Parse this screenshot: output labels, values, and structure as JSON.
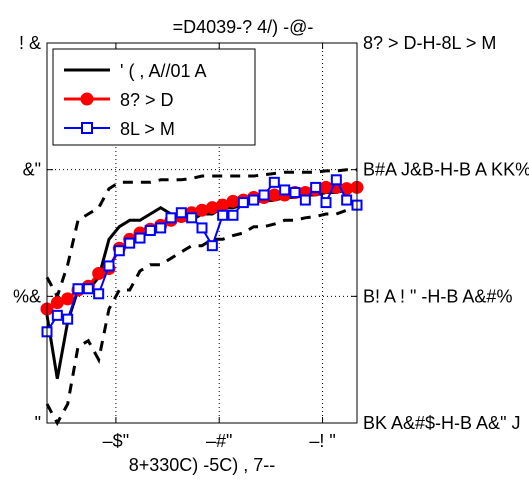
{
  "chart_data": {
    "type": "line",
    "title": "=D4039-? 4/) -@-",
    "xlabel": "8+330C) -5C) , 7--",
    "ylabel": "",
    "xlim": [
      -40,
      5
    ],
    "ylim": [
      0,
      30
    ],
    "x_ticks": [
      {
        "value": -30,
        "label": "–$\""
      },
      {
        "value": -15,
        "label": "–#\""
      },
      {
        "value": 0,
        "label": "–! \""
      }
    ],
    "y_ticks_left": [
      {
        "value": 0,
        "label": "\""
      },
      {
        "value": 10,
        "label": "%&"
      },
      {
        "value": 20,
        "label": "&\""
      },
      {
        "value": 30,
        "label": "! &"
      }
    ],
    "y_ticks_right": [
      {
        "value": 0,
        "label": "BK A&#$-H-B A&\" J"
      },
      {
        "value": 10,
        "label": "B! A ! \" -H-B A&#%"
      },
      {
        "value": 20,
        "label": "B#A J&B-H-B A KK%"
      },
      {
        "value": 30,
        "label": "8? > D-H-8L > M"
      }
    ],
    "grid": true,
    "legend_position": "top-left",
    "x": [
      -40,
      -38.5,
      -37,
      -35.5,
      -34,
      -32.5,
      -31,
      -29.5,
      -28,
      -26.5,
      -25,
      -23.5,
      -22,
      -20.5,
      -19,
      -17.5,
      -16,
      -14.5,
      -13,
      -11.5,
      -10,
      -8.5,
      -7,
      -5.5,
      -4,
      -2.5,
      -1,
      0.5,
      2,
      3.5,
      5
    ],
    "series": [
      {
        "name": "' ( , A//01 A",
        "color": "#000000",
        "style": "solid",
        "marker": "none",
        "values": [
          8.5,
          3.5,
          8.0,
          10.5,
          10.5,
          11.5,
          14.5,
          15.5,
          16.0,
          16.0,
          16.5,
          17.0,
          16.5,
          16.0,
          16.0,
          16.5,
          16.5,
          17.0,
          17.0,
          17.2,
          17.5,
          17.5,
          17.6,
          17.8,
          17.8,
          18.0,
          18.0,
          18.2,
          18.2,
          18.4,
          18.5
        ]
      },
      {
        "name": "",
        "color": "#000000",
        "style": "dashed",
        "marker": "none",
        "values": [
          11.5,
          10.0,
          12.5,
          16.0,
          16.5,
          17.0,
          18.5,
          19.0,
          19.0,
          19.0,
          19.0,
          19.2,
          19.2,
          19.2,
          19.3,
          19.5,
          19.5,
          19.5,
          19.5,
          19.5,
          19.5,
          19.6,
          19.7,
          19.8,
          19.8,
          19.8,
          19.8,
          19.9,
          19.9,
          20.0,
          20.0
        ]
      },
      {
        "name": "",
        "color": "#000000",
        "style": "dashed",
        "marker": "none",
        "values": [
          1.5,
          0.0,
          1.5,
          6.0,
          6.5,
          5.0,
          9.0,
          10.5,
          10.5,
          12.0,
          12.5,
          12.5,
          13.0,
          13.5,
          14.0,
          14.0,
          14.5,
          14.5,
          14.8,
          15.0,
          15.5,
          15.5,
          15.7,
          16.0,
          16.0,
          16.2,
          16.3,
          16.5,
          16.5,
          16.8,
          17.0
        ]
      },
      {
        "name": "8? > D",
        "color": "#ff0000",
        "style": "solid",
        "marker": "circle",
        "values": [
          9.0,
          9.5,
          9.8,
          10.5,
          10.8,
          11.8,
          12.2,
          13.8,
          14.5,
          15.0,
          15.3,
          15.6,
          16.0,
          16.3,
          16.6,
          16.8,
          17.0,
          17.2,
          17.5,
          17.6,
          17.8,
          17.8,
          18.0,
          18.0,
          18.2,
          18.2,
          18.4,
          18.6,
          18.6,
          18.5,
          18.6
        ]
      },
      {
        "name": "8L > M",
        "color": "#0000ff",
        "style": "solid",
        "marker": "square",
        "values": [
          7.2,
          8.5,
          8.2,
          10.6,
          10.6,
          10.2,
          12.4,
          13.6,
          14.2,
          14.6,
          15.2,
          15.4,
          16.2,
          16.6,
          16.2,
          15.4,
          14.0,
          16.4,
          16.4,
          17.4,
          17.6,
          18.0,
          19.0,
          18.4,
          18.2,
          17.6,
          18.6,
          17.4,
          19.2,
          17.6,
          17.2
        ]
      }
    ]
  }
}
